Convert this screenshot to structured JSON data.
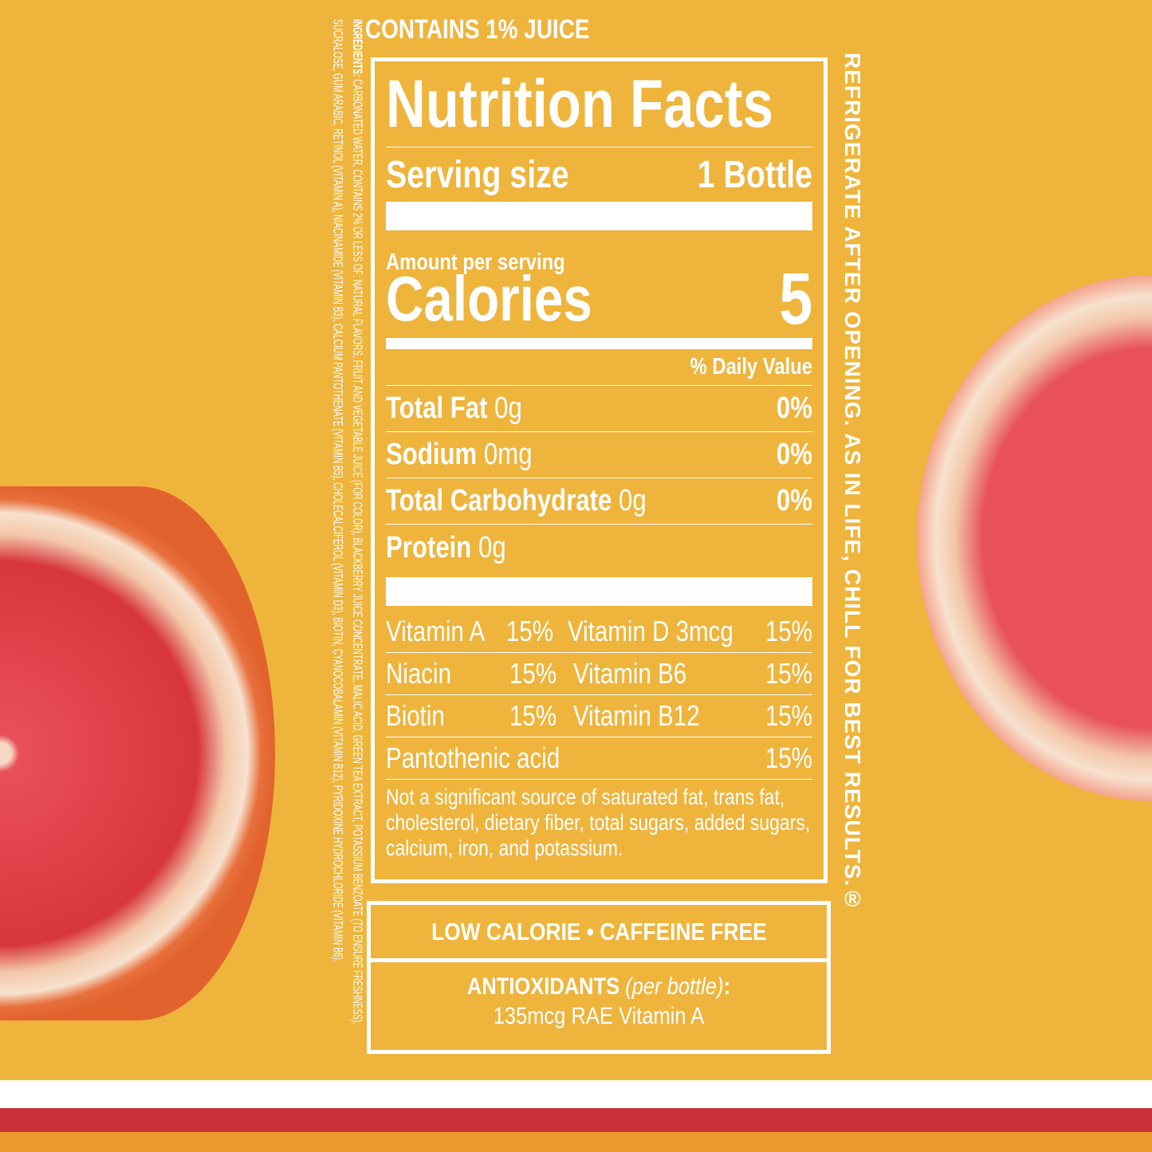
{
  "header": {
    "juice": "CONTAINS 1% JUICE"
  },
  "ingredients": {
    "label": "INGREDIENTS:",
    "text": "CARBONATED WATER, CONTAINS 2% OR LESS OF: NATURAL FLAVORS, FRUIT AND VEGETABLE JUICE (FOR COLOR), BLACKBERRY JUICE CONCENTRATE, MALIC ACID, GREEN TEA EXTRACT, POTASSIUM BENZOATE (TO ENSURE FRESHNESS), SUCRALOSE, GUM ARABIC, RETINOL (VITAMIN A), NIACINAMIDE (VITAMIN B3), CALCIUM PANTOTHENATE (VITAMIN B5), CHOLECALCIFEROL (VITAMIN D3), BIOTIN, CYANOCOBALAMIN (VITAMIN B12), PYRIDOXINE HYDROCHLORIDE (VITAMIN B6)."
  },
  "side_text": "REFRIGERATE AFTER OPENING. AS IN LIFE, CHILL FOR BEST RESULTS.®",
  "nutrition": {
    "title": "Nutrition Facts",
    "serving_label": "Serving size",
    "serving_value": "1 Bottle",
    "amount_label": "Amount per serving",
    "calories_label": "Calories",
    "calories_value": "5",
    "dv_label": "% Daily Value",
    "nutrients": [
      {
        "name": "Total Fat",
        "amount": "0g",
        "dv": "0%"
      },
      {
        "name": "Sodium",
        "amount": "0mg",
        "dv": "0%"
      },
      {
        "name": "Total Carbohydrate",
        "amount": "0g",
        "dv": "0%"
      },
      {
        "name": "Protein",
        "amount": "0g",
        "dv": ""
      }
    ],
    "vitamins": [
      [
        "Vitamin A",
        "15%",
        "Vitamin D 3mcg",
        "15%"
      ],
      [
        "Niacin",
        "15%",
        "Vitamin B6",
        "15%"
      ],
      [
        "Biotin",
        "15%",
        "Vitamin B12",
        "15%"
      ],
      [
        "Pantothenic acid",
        "",
        "",
        "15%"
      ]
    ],
    "note": "Not a significant source of saturated fat, trans fat, cholesterol, dietary fiber, total sugars, added sugars, calcium, iron, and potassium."
  },
  "claims": {
    "line1": "LOW CALORIE • CAFFEINE FREE",
    "antioxidants": "ANTIOXIDANTS",
    "per_bottle": "(per bottle)",
    "colon": ":",
    "line3": "135mcg RAE Vitamin A"
  },
  "colors": {
    "background": "#EEB43C",
    "stripe_red": "#C8303A",
    "stripe_orange": "#EE9A2E",
    "white": "#FFFFFF"
  }
}
